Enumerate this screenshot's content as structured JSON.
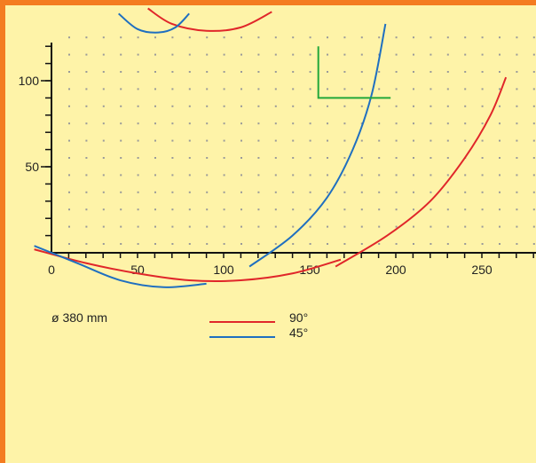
{
  "chart_data": {
    "type": "line",
    "x_ticks": [
      0,
      50,
      100,
      150,
      200,
      250
    ],
    "y_ticks": [
      50,
      100
    ],
    "xlim": [
      0,
      280
    ],
    "ylim": [
      0,
      125
    ],
    "grid": true,
    "annotation": "ø 380 mm",
    "series": [
      {
        "name": "90°",
        "color": "#e0262a",
        "arcs": [
          {
            "points": [
              [
                -10,
                2
              ],
              [
                20,
                -6
              ],
              [
                50,
                -12
              ],
              [
                80,
                -16
              ],
              [
                110,
                -16
              ],
              [
                140,
                -12
              ],
              [
                168,
                -4
              ]
            ]
          },
          {
            "points": [
              [
                165,
                -8
              ],
              [
                195,
                10
              ],
              [
                220,
                30
              ],
              [
                240,
                55
              ],
              [
                255,
                80
              ],
              [
                264,
                102
              ]
            ]
          },
          {
            "points": [
              [
                56,
                142
              ],
              [
                70,
                133
              ],
              [
                90,
                129
              ],
              [
                110,
                131
              ],
              [
                128,
                140
              ]
            ]
          }
        ]
      },
      {
        "name": "45°",
        "color": "#1f6fc0",
        "arcs": [
          {
            "points": [
              [
                -10,
                4
              ],
              [
                15,
                -6
              ],
              [
                40,
                -16
              ],
              [
                65,
                -20
              ],
              [
                90,
                -18
              ]
            ]
          },
          {
            "points": [
              [
                115,
                -8
              ],
              [
                140,
                10
              ],
              [
                160,
                32
              ],
              [
                175,
                60
              ],
              [
                186,
                92
              ],
              [
                194,
                133
              ]
            ]
          },
          {
            "points": [
              [
                39,
                139
              ],
              [
                50,
                130
              ],
              [
                62,
                128
              ],
              [
                72,
                131
              ],
              [
                80,
                139
              ]
            ]
          }
        ]
      }
    ],
    "green_marker": {
      "color": "#22a83a",
      "points": [
        [
          155,
          120
        ],
        [
          155,
          90
        ],
        [
          197,
          90
        ]
      ]
    }
  },
  "legend": {
    "annotation": "ø 380 mm",
    "items": [
      {
        "label": "90°",
        "color": "#e0262a"
      },
      {
        "label": "45°",
        "color": "#1f6fc0"
      }
    ]
  }
}
